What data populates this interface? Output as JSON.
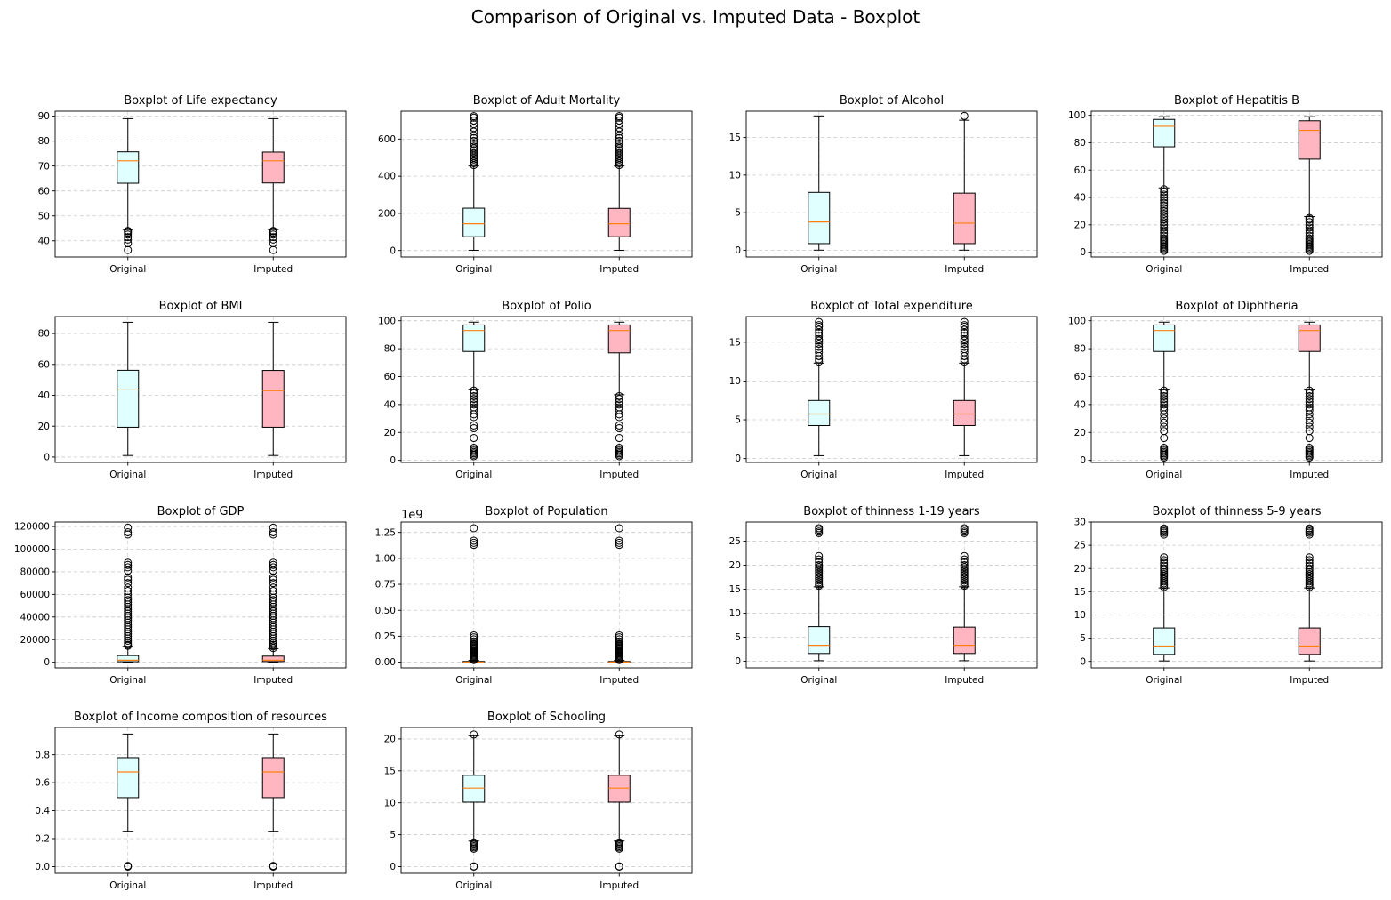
{
  "suptitle": "Comparison of Original vs. Imputed Data - Boxplot",
  "colors": {
    "original_box": "#e0ffff",
    "imputed_box": "#ffb6c1",
    "median": "#ff7f0e",
    "grid": "#cccccc",
    "edge": "#000000"
  },
  "chart_data": [
    {
      "type": "boxplot",
      "title": "Boxplot of Life expectancy",
      "categories": [
        "Original",
        "Imputed"
      ],
      "ylim": [
        33.5,
        92
      ],
      "yticks": [
        40,
        50,
        60,
        70,
        80,
        90
      ],
      "ytick_labels": [
        "40",
        "50",
        "60",
        "70",
        "80",
        "90"
      ],
      "grid": true,
      "series": [
        {
          "name": "Original",
          "whislo": 44.5,
          "q1": 63.1,
          "med": 72.1,
          "q3": 75.7,
          "whishi": 89,
          "fliers": [
            36.3,
            39,
            40.5,
            41.5,
            42.5,
            43.2,
            43.8,
            44
          ]
        },
        {
          "name": "Imputed",
          "whislo": 44.5,
          "q1": 63.2,
          "med": 72.1,
          "q3": 75.6,
          "whishi": 89,
          "fliers": [
            36.3,
            39,
            40.5,
            41.5,
            42.5,
            43.2,
            43.8,
            44
          ]
        }
      ]
    },
    {
      "type": "boxplot",
      "title": "Boxplot of Adult Mortality",
      "categories": [
        "Original",
        "Imputed"
      ],
      "ylim": [
        -35,
        750
      ],
      "yticks": [
        0,
        200,
        400,
        600
      ],
      "ytick_labels": [
        "0",
        "200",
        "400",
        "600"
      ],
      "grid": true,
      "series": [
        {
          "name": "Original",
          "whislo": 1,
          "q1": 74,
          "med": 144,
          "q3": 228,
          "whishi": 455,
          "fliers": [
            460,
            470,
            480,
            490,
            500,
            510,
            520,
            530,
            540,
            550,
            560,
            575,
            590,
            605,
            620,
            640,
            660,
            680,
            700,
            715,
            723
          ]
        },
        {
          "name": "Imputed",
          "whislo": 1,
          "q1": 74,
          "med": 144,
          "q3": 227,
          "whishi": 455,
          "fliers": [
            460,
            470,
            480,
            490,
            500,
            510,
            520,
            530,
            540,
            550,
            560,
            575,
            590,
            605,
            620,
            640,
            660,
            680,
            700,
            715,
            723
          ]
        }
      ]
    },
    {
      "type": "boxplot",
      "title": "Boxplot of Alcohol",
      "categories": [
        "Original",
        "Imputed"
      ],
      "ylim": [
        -0.9,
        18.5
      ],
      "yticks": [
        0,
        5,
        10,
        15
      ],
      "ytick_labels": [
        "0",
        "5",
        "10",
        "15"
      ],
      "grid": true,
      "series": [
        {
          "name": "Original",
          "whislo": 0.01,
          "q1": 0.88,
          "med": 3.76,
          "q3": 7.7,
          "whishi": 17.87,
          "fliers": []
        },
        {
          "name": "Imputed",
          "whislo": 0.01,
          "q1": 0.88,
          "med": 3.6,
          "q3": 7.6,
          "whishi": 17.3,
          "fliers": [
            17.87
          ]
        }
      ]
    },
    {
      "type": "boxplot",
      "title": "Boxplot of Hepatitis B",
      "categories": [
        "Original",
        "Imputed"
      ],
      "ylim": [
        -3.5,
        103
      ],
      "yticks": [
        0,
        20,
        40,
        60,
        80,
        100
      ],
      "ytick_labels": [
        "0",
        "20",
        "40",
        "60",
        "80",
        "100"
      ],
      "grid": true,
      "series": [
        {
          "name": "Original",
          "whislo": 47,
          "q1": 77,
          "med": 92,
          "q3": 97,
          "whishi": 99,
          "fliers": [
            1,
            2,
            3,
            4,
            5,
            6,
            7,
            8,
            9,
            10,
            12,
            14,
            16,
            18,
            20,
            22,
            24,
            26,
            28,
            30,
            32,
            34,
            36,
            38,
            40,
            42,
            44,
            46
          ]
        },
        {
          "name": "Imputed",
          "whislo": 26,
          "q1": 68,
          "med": 89,
          "q3": 96,
          "whishi": 99,
          "fliers": [
            1,
            2,
            3,
            4,
            5,
            6,
            7,
            8,
            9,
            10,
            12,
            14,
            16,
            18,
            20,
            22,
            24,
            25
          ]
        }
      ]
    },
    {
      "type": "boxplot",
      "title": "Boxplot of  BMI",
      "categories": [
        "Original",
        "Imputed"
      ],
      "ylim": [
        -3.5,
        91
      ],
      "yticks": [
        0,
        20,
        40,
        60,
        80
      ],
      "ytick_labels": [
        "0",
        "20",
        "40",
        "60",
        "80"
      ],
      "grid": true,
      "series": [
        {
          "name": "Original",
          "whislo": 1,
          "q1": 19.3,
          "med": 43.5,
          "q3": 56.2,
          "whishi": 87.3,
          "fliers": []
        },
        {
          "name": "Imputed",
          "whislo": 1,
          "q1": 19.3,
          "med": 43,
          "q3": 56.1,
          "whishi": 87.3,
          "fliers": []
        }
      ]
    },
    {
      "type": "boxplot",
      "title": "Boxplot of Polio",
      "categories": [
        "Original",
        "Imputed"
      ],
      "ylim": [
        -1.5,
        103
      ],
      "yticks": [
        0,
        20,
        40,
        60,
        80,
        100
      ],
      "ytick_labels": [
        "0",
        "20",
        "40",
        "60",
        "80",
        "100"
      ],
      "grid": true,
      "series": [
        {
          "name": "Original",
          "whislo": 51,
          "q1": 78,
          "med": 93,
          "q3": 97,
          "whishi": 99,
          "fliers": [
            3,
            4,
            5,
            6,
            7,
            8,
            9,
            16,
            23,
            25,
            31,
            33,
            36,
            38,
            40,
            42,
            44,
            46,
            48,
            50
          ]
        },
        {
          "name": "Imputed",
          "whislo": 47,
          "q1": 77,
          "med": 93,
          "q3": 97,
          "whishi": 99,
          "fliers": [
            3,
            4,
            5,
            6,
            7,
            8,
            9,
            16,
            23,
            25,
            31,
            33,
            36,
            38,
            40,
            42,
            44,
            46
          ]
        }
      ]
    },
    {
      "type": "boxplot",
      "title": "Boxplot of Total expenditure",
      "categories": [
        "Original",
        "Imputed"
      ],
      "ylim": [
        -0.5,
        18.3
      ],
      "yticks": [
        0,
        5,
        10,
        15
      ],
      "ytick_labels": [
        "0",
        "5",
        "10",
        "15"
      ],
      "grid": true,
      "series": [
        {
          "name": "Original",
          "whislo": 0.37,
          "q1": 4.26,
          "med": 5.75,
          "q3": 7.49,
          "whishi": 12.3,
          "fliers": [
            12.5,
            12.8,
            13.2,
            13.7,
            14.1,
            14.4,
            14.8,
            15.2,
            15.4,
            15.8,
            16.2,
            16.6,
            17.0,
            17.2,
            17.6
          ]
        },
        {
          "name": "Imputed",
          "whislo": 0.37,
          "q1": 4.26,
          "med": 5.75,
          "q3": 7.49,
          "whishi": 12.3,
          "fliers": [
            12.5,
            12.8,
            13.2,
            13.7,
            14.1,
            14.4,
            14.8,
            15.2,
            15.4,
            15.8,
            16.2,
            16.6,
            17.0,
            17.2,
            17.6
          ]
        }
      ]
    },
    {
      "type": "boxplot",
      "title": "Boxplot of Diphtheria",
      "categories": [
        "Original",
        "Imputed"
      ],
      "ylim": [
        -1.5,
        103
      ],
      "yticks": [
        0,
        20,
        40,
        60,
        80,
        100
      ],
      "ytick_labels": [
        "0",
        "20",
        "40",
        "60",
        "80",
        "100"
      ],
      "grid": true,
      "series": [
        {
          "name": "Original",
          "whislo": 51,
          "q1": 78,
          "med": 93,
          "q3": 97,
          "whishi": 99,
          "fliers": [
            2,
            3,
            4,
            5,
            6,
            7,
            8,
            9,
            16,
            21,
            24,
            27,
            30,
            33,
            36,
            38,
            40,
            42,
            44,
            46,
            48,
            50
          ]
        },
        {
          "name": "Imputed",
          "whislo": 51,
          "q1": 78,
          "med": 93,
          "q3": 97,
          "whishi": 99,
          "fliers": [
            2,
            3,
            4,
            5,
            6,
            7,
            8,
            9,
            16,
            21,
            24,
            27,
            30,
            33,
            36,
            38,
            40,
            42,
            44,
            46,
            48,
            50
          ]
        }
      ]
    },
    {
      "type": "boxplot",
      "title": "Boxplot of GDP",
      "categories": [
        "Original",
        "Imputed"
      ],
      "ylim": [
        -5000,
        124000
      ],
      "yticks": [
        0,
        20000,
        40000,
        60000,
        80000,
        100000,
        120000
      ],
      "ytick_labels": [
        "0",
        "20000",
        "40000",
        "60000",
        "80000",
        "100000",
        "120000"
      ],
      "grid": true,
      "series": [
        {
          "name": "Original",
          "whislo": 1.7,
          "q1": 463,
          "med": 1766,
          "q3": 5910,
          "whishi": 14000,
          "fliers": [
            14500,
            15500,
            17000,
            19000,
            21000,
            23000,
            25000,
            27000,
            29000,
            31000,
            33000,
            35000,
            37000,
            39000,
            41000,
            43000,
            45000,
            47000,
            49000,
            51000,
            53000,
            55000,
            57000,
            60000,
            63000,
            66000,
            70000,
            73000,
            75000,
            81000,
            84000,
            86000,
            88000,
            113000,
            115000,
            119000
          ]
        },
        {
          "name": "Imputed",
          "whislo": 1.7,
          "q1": 580,
          "med": 1766,
          "q3": 5400,
          "whishi": 12000,
          "fliers": [
            12500,
            14000,
            15500,
            17000,
            19000,
            21000,
            23000,
            25000,
            27000,
            29000,
            31000,
            33000,
            35000,
            37000,
            39000,
            41000,
            43000,
            45000,
            47000,
            49000,
            51000,
            53000,
            55000,
            57000,
            60000,
            63000,
            66000,
            70000,
            73000,
            75000,
            81000,
            84000,
            86000,
            88000,
            113000,
            115000,
            119000
          ]
        }
      ]
    },
    {
      "type": "boxplot",
      "title": "Boxplot of Population",
      "categories": [
        "Original",
        "Imputed"
      ],
      "ylim": [
        -0.055,
        1.35
      ],
      "yticks": [
        0.0,
        0.25,
        0.5,
        0.75,
        1.0,
        1.25
      ],
      "ytick_labels": [
        "0.00",
        "0.25",
        "0.50",
        "0.75",
        "1.00",
        "1.25"
      ],
      "offset_text": "1e9",
      "grid": true,
      "series": [
        {
          "name": "Original",
          "whislo": 0,
          "q1": 0.0002,
          "med": 0.0014,
          "q3": 0.0074,
          "whishi": 0.0182,
          "fliers": [
            0.02,
            0.03,
            0.04,
            0.05,
            0.06,
            0.07,
            0.08,
            0.09,
            0.1,
            0.11,
            0.12,
            0.13,
            0.14,
            0.15,
            0.16,
            0.17,
            0.18,
            0.2,
            0.22,
            0.24,
            0.258,
            1.13,
            1.15,
            1.17,
            1.29
          ]
        },
        {
          "name": "Imputed",
          "whislo": 0,
          "q1": 0.0003,
          "med": 0.0016,
          "q3": 0.0074,
          "whishi": 0.0182,
          "fliers": [
            0.02,
            0.03,
            0.04,
            0.05,
            0.06,
            0.07,
            0.08,
            0.09,
            0.1,
            0.11,
            0.12,
            0.13,
            0.14,
            0.15,
            0.16,
            0.17,
            0.18,
            0.2,
            0.22,
            0.24,
            0.258,
            1.13,
            1.15,
            1.17,
            1.29
          ]
        }
      ]
    },
    {
      "type": "boxplot",
      "title": "Boxplot of  thinness  1-19 years",
      "categories": [
        "Original",
        "Imputed"
      ],
      "ylim": [
        -1.4,
        29
      ],
      "yticks": [
        0,
        5,
        10,
        15,
        20,
        25
      ],
      "ytick_labels": [
        "0",
        "5",
        "10",
        "15",
        "20",
        "25"
      ],
      "grid": true,
      "series": [
        {
          "name": "Original",
          "whislo": 0.1,
          "q1": 1.6,
          "med": 3.3,
          "q3": 7.2,
          "whishi": 15.5,
          "fliers": [
            15.7,
            16.0,
            16.4,
            16.8,
            17.2,
            17.6,
            18.0,
            18.4,
            18.8,
            19.2,
            19.6,
            20.0,
            20.6,
            21.2,
            21.9,
            26.7,
            27.0,
            27.4,
            27.7
          ]
        },
        {
          "name": "Imputed",
          "whislo": 0.1,
          "q1": 1.6,
          "med": 3.3,
          "q3": 7.1,
          "whishi": 15.5,
          "fliers": [
            15.7,
            16.0,
            16.4,
            16.8,
            17.2,
            17.6,
            18.0,
            18.4,
            18.8,
            19.2,
            19.6,
            20.0,
            20.6,
            21.2,
            21.9,
            26.7,
            27.0,
            27.4,
            27.7
          ]
        }
      ]
    },
    {
      "type": "boxplot",
      "title": "Boxplot of  thinness 5-9 years",
      "categories": [
        "Original",
        "Imputed"
      ],
      "ylim": [
        -1.4,
        30
      ],
      "yticks": [
        0,
        5,
        10,
        15,
        20,
        25,
        30
      ],
      "ytick_labels": [
        "0",
        "5",
        "10",
        "15",
        "20",
        "25",
        "30"
      ],
      "grid": true,
      "series": [
        {
          "name": "Original",
          "whislo": 0.1,
          "q1": 1.5,
          "med": 3.3,
          "q3": 7.2,
          "whishi": 15.8,
          "fliers": [
            16.0,
            16.4,
            16.8,
            17.2,
            17.6,
            18.0,
            18.4,
            18.8,
            19.2,
            19.6,
            20.0,
            20.6,
            21.2,
            21.8,
            22.4,
            27.3,
            27.7,
            28.0,
            28.3,
            28.6
          ]
        },
        {
          "name": "Imputed",
          "whislo": 0.1,
          "q1": 1.5,
          "med": 3.3,
          "q3": 7.2,
          "whishi": 15.8,
          "fliers": [
            16.0,
            16.4,
            16.8,
            17.2,
            17.6,
            18.0,
            18.4,
            18.8,
            19.2,
            19.6,
            20.0,
            20.6,
            21.2,
            21.8,
            22.4,
            27.3,
            27.7,
            28.0,
            28.3,
            28.6
          ]
        }
      ]
    },
    {
      "type": "boxplot",
      "title": "Boxplot of Income composition of resources",
      "categories": [
        "Original",
        "Imputed"
      ],
      "ylim": [
        -0.048,
        0.995
      ],
      "yticks": [
        0.0,
        0.2,
        0.4,
        0.6,
        0.8
      ],
      "ytick_labels": [
        "0.0",
        "0.2",
        "0.4",
        "0.6",
        "0.8"
      ],
      "grid": true,
      "series": [
        {
          "name": "Original",
          "whislo": 0.253,
          "q1": 0.493,
          "med": 0.677,
          "q3": 0.779,
          "whishi": 0.948,
          "fliers": [
            0.0,
            0.005
          ]
        },
        {
          "name": "Imputed",
          "whislo": 0.253,
          "q1": 0.493,
          "med": 0.677,
          "q3": 0.779,
          "whishi": 0.948,
          "fliers": [
            0.0,
            0.005
          ]
        }
      ]
    },
    {
      "type": "boxplot",
      "title": "Boxplot of Schooling",
      "categories": [
        "Original",
        "Imputed"
      ],
      "ylim": [
        -1.05,
        21.8
      ],
      "yticks": [
        0,
        5,
        10,
        15,
        20
      ],
      "ytick_labels": [
        "0",
        "5",
        "10",
        "15",
        "20"
      ],
      "grid": true,
      "series": [
        {
          "name": "Original",
          "whislo": 4.0,
          "q1": 10.1,
          "med": 12.3,
          "q3": 14.3,
          "whishi": 20.5,
          "fliers": [
            0,
            0.05,
            2.8,
            3.0,
            3.2,
            3.4,
            3.6,
            3.8,
            20.7
          ]
        },
        {
          "name": "Imputed",
          "whislo": 4.0,
          "q1": 10.1,
          "med": 12.3,
          "q3": 14.3,
          "whishi": 20.5,
          "fliers": [
            0,
            0.05,
            2.8,
            3.0,
            3.2,
            3.4,
            3.6,
            3.8,
            20.7
          ]
        }
      ]
    }
  ]
}
